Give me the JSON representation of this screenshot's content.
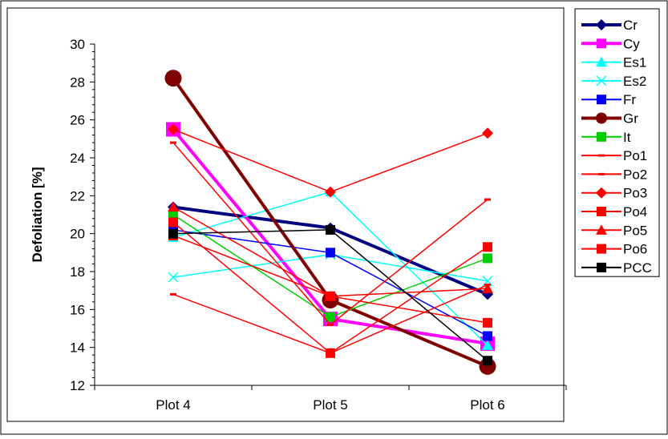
{
  "chart_data": {
    "type": "line",
    "title": "",
    "xlabel": "",
    "ylabel": "Defoliation [%]",
    "categories": [
      "Plot 4",
      "Plot 5",
      "Plot 6"
    ],
    "ylim": [
      12,
      30
    ],
    "yticks": [
      12,
      14,
      16,
      18,
      20,
      22,
      24,
      26,
      28,
      30
    ],
    "grid": false,
    "legend": "right",
    "series": [
      {
        "name": "Cr",
        "values": [
          21.4,
          20.3,
          16.8
        ],
        "color": "#000080",
        "marker": "diamond",
        "width": 4
      },
      {
        "name": "Cy",
        "values": [
          25.5,
          15.5,
          14.2
        ],
        "color": "#ff00ff",
        "marker": "square",
        "width": 4
      },
      {
        "name": "Es1",
        "values": [
          19.8,
          22.2,
          14.1
        ],
        "color": "#00ffff",
        "marker": "triangle",
        "width": 1.5
      },
      {
        "name": "Es2",
        "values": [
          17.7,
          18.9,
          17.5
        ],
        "color": "#00ffff",
        "marker": "x",
        "width": 1.5
      },
      {
        "name": "Fr",
        "values": [
          20.2,
          19.0,
          14.6
        ],
        "color": "#0000ff",
        "marker": "square",
        "width": 1.5
      },
      {
        "name": "Gr",
        "values": [
          28.2,
          16.5,
          13.0
        ],
        "color": "#800000",
        "marker": "circle",
        "width": 4
      },
      {
        "name": "It",
        "values": [
          21.0,
          15.6,
          18.7
        ],
        "color": "#00cc00",
        "marker": "square",
        "width": 1.5
      },
      {
        "name": "Po1",
        "values": [
          24.8,
          15.2,
          21.8
        ],
        "color": "#ff0000",
        "marker": "dash",
        "width": 1.5
      },
      {
        "name": "Po2",
        "values": [
          16.8,
          13.7,
          17.3
        ],
        "color": "#ff0000",
        "marker": "dash",
        "width": 1.5
      },
      {
        "name": "Po3",
        "values": [
          25.5,
          22.2,
          25.3
        ],
        "color": "#ff0000",
        "marker": "diamond",
        "width": 1.5
      },
      {
        "name": "Po4",
        "values": [
          20.6,
          13.7,
          19.3
        ],
        "color": "#ff0000",
        "marker": "square",
        "width": 1.5
      },
      {
        "name": "Po5",
        "values": [
          21.4,
          16.7,
          17.1
        ],
        "color": "#ff0000",
        "marker": "triangle",
        "width": 1.5
      },
      {
        "name": "Po6",
        "values": [
          19.9,
          16.7,
          15.3
        ],
        "color": "#ff0000",
        "marker": "square",
        "width": 1.5
      },
      {
        "name": "PCC",
        "values": [
          20.0,
          20.2,
          13.3
        ],
        "color": "#000000",
        "marker": "square",
        "width": 1.5
      }
    ]
  }
}
